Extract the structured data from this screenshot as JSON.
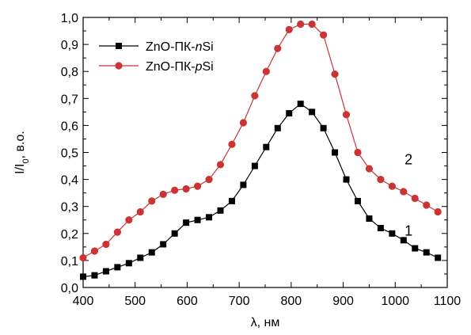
{
  "chart_data": {
    "type": "line",
    "xlabel": "λ, нм",
    "ylabel": "I/I",
    "ylabel_sub": "0",
    "ylabel_suffix": ", в.о.",
    "xlim": [
      400,
      1100
    ],
    "ylim": [
      0,
      1.0
    ],
    "x_ticks": [
      400,
      500,
      600,
      700,
      800,
      900,
      1000,
      1100
    ],
    "x_tick_labels": [
      "400",
      "500",
      "600",
      "700",
      "800",
      "900",
      "1000",
      "1100"
    ],
    "y_ticks": [
      0,
      0.1,
      0.2,
      0.3,
      0.4,
      0.5,
      0.6,
      0.7,
      0.8,
      0.9,
      1.0
    ],
    "y_tick_labels": [
      "0,0",
      "0,1",
      "0,2",
      "0,3",
      "0,4",
      "0,5",
      "0,6",
      "0,7",
      "0,8",
      "0,9",
      "1,0"
    ],
    "grid": false,
    "legend_position": "top-left",
    "series": [
      {
        "name_parts": [
          "ZnO-ПК-",
          "n",
          "Si"
        ],
        "curve_label": "1",
        "color": "#000000",
        "marker": "square",
        "x": [
          400,
          422,
          444,
          466,
          488,
          510,
          532,
          554,
          576,
          598,
          620,
          642,
          664,
          686,
          708,
          730,
          752,
          774,
          796,
          818,
          840,
          862,
          884,
          906,
          928,
          950,
          972,
          994,
          1016,
          1038,
          1060,
          1082
        ],
        "values": [
          0.04,
          0.045,
          0.06,
          0.075,
          0.09,
          0.11,
          0.13,
          0.16,
          0.2,
          0.24,
          0.25,
          0.26,
          0.285,
          0.32,
          0.38,
          0.45,
          0.52,
          0.59,
          0.645,
          0.68,
          0.65,
          0.59,
          0.5,
          0.4,
          0.32,
          0.255,
          0.22,
          0.2,
          0.175,
          0.145,
          0.13,
          0.11
        ]
      },
      {
        "name_parts": [
          "ZnO-ПК-",
          "p",
          "Si"
        ],
        "curve_label": "2",
        "color": "#cc3333",
        "marker": "circle",
        "x": [
          400,
          422,
          444,
          466,
          488,
          510,
          532,
          554,
          576,
          598,
          620,
          642,
          664,
          686,
          708,
          730,
          752,
          774,
          796,
          818,
          840,
          862,
          884,
          906,
          928,
          950,
          972,
          994,
          1016,
          1038,
          1060,
          1082
        ],
        "values": [
          0.11,
          0.135,
          0.16,
          0.205,
          0.25,
          0.28,
          0.32,
          0.345,
          0.36,
          0.365,
          0.375,
          0.4,
          0.455,
          0.53,
          0.61,
          0.71,
          0.8,
          0.885,
          0.955,
          0.975,
          0.975,
          0.935,
          0.79,
          0.64,
          0.5,
          0.44,
          0.4,
          0.375,
          0.355,
          0.33,
          0.305,
          0.28
        ]
      }
    ]
  }
}
